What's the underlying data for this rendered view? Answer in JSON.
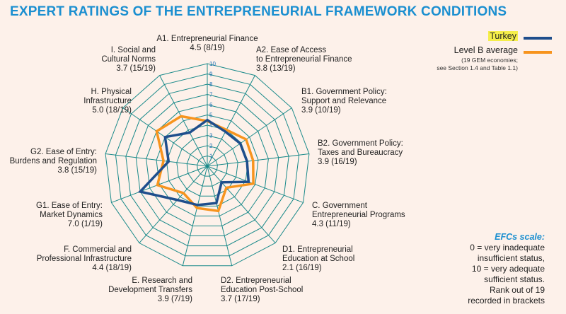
{
  "title": "EXPERT RATINGS OF THE ENTREPRENEURIAL FRAMEWORK CONDITIONS",
  "legend": {
    "note": "(19 GEM economies;\nsee Section 1.4 and Table 1.1)"
  },
  "scale_note": {
    "title": "EFCs scale:",
    "lines": [
      "0 = very inadequate",
      "insufficient status,",
      "10 = very adequate",
      "sufficient status.",
      "Rank out of 19",
      "recorded in brackets"
    ]
  },
  "colors": {
    "grid": "#1a8a8a",
    "turkey": "#1f4e8c",
    "level_b": "#f7941d",
    "title": "#1b8fd0",
    "highlight": "#f5ee4a"
  },
  "chart_data": {
    "type": "radar",
    "title": "EXPERT RATINGS OF THE ENTREPRENEURIAL FRAMEWORK CONDITIONS",
    "r_range": [
      0,
      10
    ],
    "r_ticks": [
      "1",
      "2",
      "3",
      "4",
      "5",
      "6",
      "7",
      "8",
      "9",
      "10"
    ],
    "categories": [
      {
        "lines": [
          "A1. Entrepreneurial Finance",
          "4.5 (8/19)"
        ]
      },
      {
        "lines": [
          "A2. Ease of Access",
          "to Entrepreneurial Finance",
          "3.8 (13/19)"
        ]
      },
      {
        "lines": [
          "B1. Government Policy:",
          "Support and Relevance",
          "3.9 (10/19)"
        ]
      },
      {
        "lines": [
          "B2. Government Policy:",
          "Taxes and Bureaucracy",
          "3.9 (16/19)"
        ]
      },
      {
        "lines": [
          "C. Government",
          "Entrepreneurial Programs",
          "4.3 (11/19)"
        ]
      },
      {
        "lines": [
          "D1. Entrepreneurial",
          "Education at School",
          "2.1 (16/19)"
        ]
      },
      {
        "lines": [
          "D2. Entrepreneurial",
          "Education Post-School",
          "3.7 (17/19)"
        ]
      },
      {
        "lines": [
          "E. Research and",
          "Development Transfers",
          "3.9 (7/19)"
        ]
      },
      {
        "lines": [
          "F. Commercial and",
          "Professional Infrastructure",
          "4.4 (18/19)"
        ]
      },
      {
        "lines": [
          "G1. Ease of Entry:",
          "Market Dynamics",
          "7.0 (1/19)"
        ]
      },
      {
        "lines": [
          "G2. Ease of Entry:",
          "Burdens and Regulation",
          "3.8 (15/19)"
        ]
      },
      {
        "lines": [
          "H. Physical",
          "Infrastructure",
          "5.0 (18/19)"
        ]
      },
      {
        "lines": [
          "I. Social and",
          "Cultural Norms",
          "3.7 (15/19)"
        ]
      }
    ],
    "series": [
      {
        "name": "Turkey",
        "values": [
          4.5,
          3.8,
          3.9,
          3.9,
          4.3,
          2.1,
          3.7,
          3.9,
          4.4,
          7.0,
          3.8,
          5.0,
          3.7
        ]
      },
      {
        "name": "Level B average",
        "values": [
          4.4,
          4.0,
          4.6,
          4.5,
          4.8,
          2.8,
          4.5,
          4.2,
          3.5,
          5.2,
          4.3,
          6.0,
          5.5
        ]
      }
    ]
  }
}
